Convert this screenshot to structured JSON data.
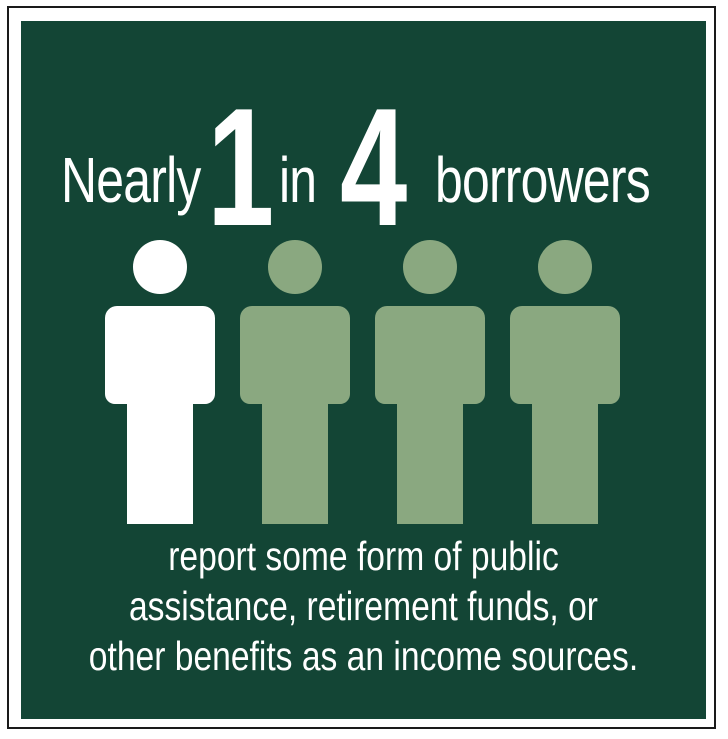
{
  "headline": {
    "word_nearly": "Nearly",
    "number_one": "1",
    "word_in": "in",
    "number_four": "4",
    "word_borrowers": "borrowers"
  },
  "figures": {
    "total": 4,
    "highlighted": 1,
    "highlight_color": "#ffffff",
    "muted_color": "#8aa880",
    "background_color": "#134535"
  },
  "caption": {
    "line1": "report some form of public",
    "line2": "assistance, retirement funds, or",
    "line3": "other benefits as an income sources."
  }
}
